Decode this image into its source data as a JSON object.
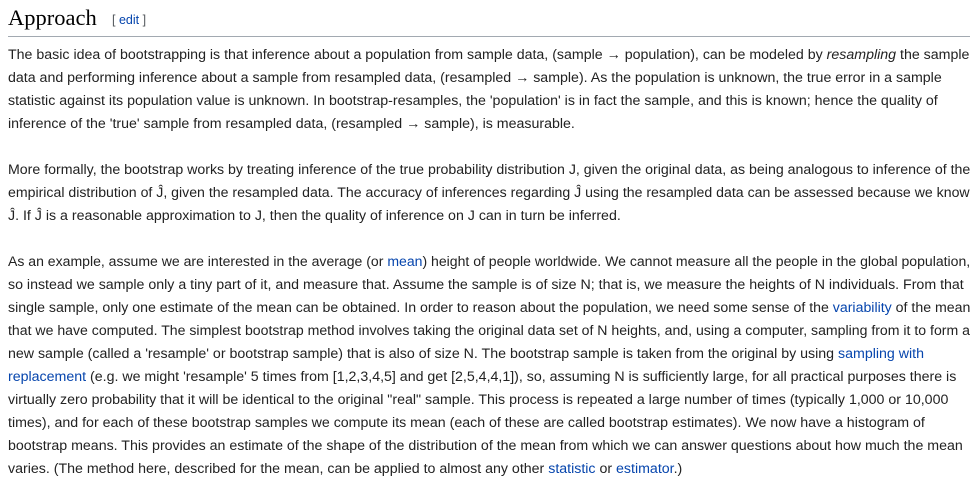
{
  "section": {
    "title": "Approach",
    "edit_open": "[ ",
    "edit_label": "edit",
    "edit_close": " ]"
  },
  "p1": {
    "l1a": "The basic idea of bootstrapping is that inference about a population from sample data, (sample → population), can be modeled by ",
    "l1em": "resampling",
    "l1b": " the sample",
    "l2": "data and performing inference about a sample from resampled data, (resampled → sample). As the population is unknown, the true error in a sample",
    "l3": "statistic against its population value is unknown. In bootstrap-resamples, the 'population' is in fact the sample, and this is known; hence the quality of",
    "l4": "inference of the 'true' sample from resampled data, (resampled → sample), is measurable."
  },
  "p2": {
    "l1": "More formally, the bootstrap works by treating inference of the true probability distribution J, given the original data, as being analogous to inference of the",
    "l2": "empirical distribution of Ĵ, given the resampled data. The accuracy of inferences regarding Ĵ using the resampled data can be assessed because we know",
    "l3": "Ĵ. If Ĵ is a reasonable approximation to J, then the quality of inference on J can in turn be inferred."
  },
  "p3": {
    "l1a": "As an example, assume we are interested in the average (or ",
    "l1link": "mean",
    "l1b": ") height of people worldwide. We cannot measure all the people in the global population,",
    "l2": "so instead we sample only a tiny part of it, and measure that. Assume the sample is of size N; that is, we measure the heights of N individuals. From that",
    "l3a": "single sample, only one estimate of the mean can be obtained. In order to reason about the population, we need some sense of the ",
    "l3link": "variability",
    "l3b": " of the mean",
    "l4": "that we have computed. The simplest bootstrap method involves taking the original data set of N heights, and, using a computer, sampling from it to form a",
    "l5a": "new sample (called a 'resample' or bootstrap sample) that is also of size N. The bootstrap sample is taken from the original by using ",
    "l5link": "sampling with",
    "l6link": "replacement",
    "l6b": " (e.g. we might 'resample' 5 times from [1,2,3,4,5] and get [2,5,4,4,1]), so, assuming N is sufficiently large, for all practical purposes there is",
    "l7": "virtually zero probability that it will be identical to the original \"real\" sample. This process is repeated a large number of times (typically 1,000 or 10,000",
    "l8": "times), and for each of these bootstrap samples we compute its mean (each of these are called bootstrap estimates). We now have a histogram of",
    "l9": "bootstrap means. This provides an estimate of the shape of the distribution of the mean from which we can answer questions about how much the mean",
    "l10a": "varies. (The method here, described for the mean, can be applied to almost any other ",
    "l10link1": "statistic",
    "l10mid": " or ",
    "l10link2": "estimator",
    "l10end": ".)"
  },
  "colors": {
    "text": "#222222",
    "link": "#0645ad",
    "rule": "#a2a9b1",
    "edit_bracket": "#54595d"
  }
}
